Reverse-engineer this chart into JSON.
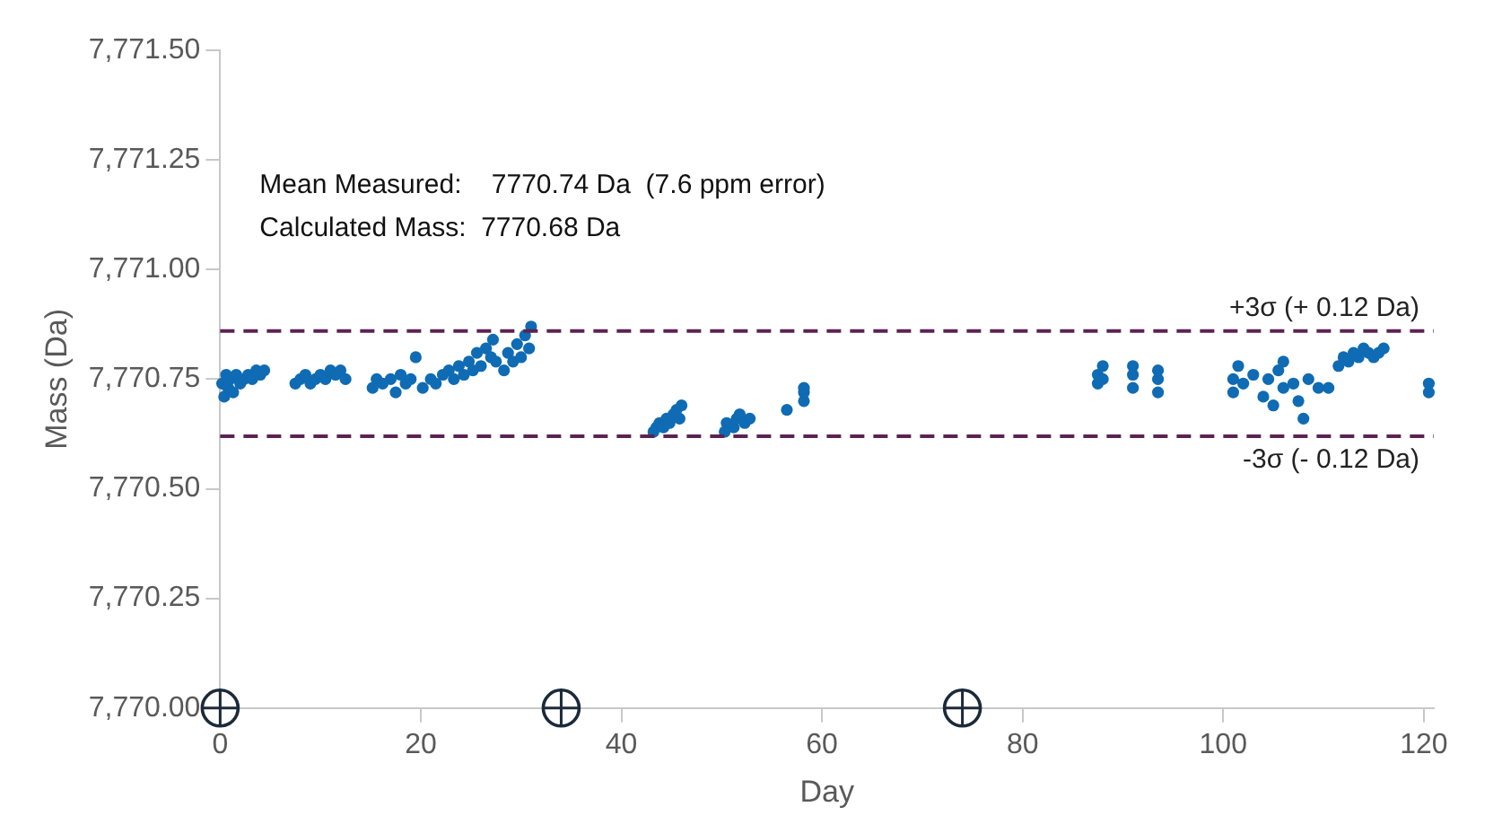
{
  "chart_data": {
    "type": "scatter",
    "xlabel": "Day",
    "ylabel": "Mass (Da)",
    "xlim": [
      0,
      121
    ],
    "xticks": [
      0,
      20,
      40,
      60,
      80,
      100,
      120
    ],
    "ylim": [
      7770,
      7771.5
    ],
    "yticks": [
      {
        "value": 7770,
        "label": "7,770.00"
      },
      {
        "value": 7770.25,
        "label": "7,770.25"
      },
      {
        "value": 7770.5,
        "label": "7,770.50"
      },
      {
        "value": 7770.75,
        "label": "7,770.75"
      },
      {
        "value": 7771,
        "label": "7,771.00"
      },
      {
        "value": 7771.25,
        "label": "7,771.25"
      },
      {
        "value": 7771.5,
        "label": "7,771.50"
      }
    ],
    "grid": false,
    "legend": false,
    "marker": "circle",
    "annotations": [
      "Mean Measured:    7770.74 Da  (7.6 ppm error)",
      "Calculated Mass:  7770.68 Da"
    ],
    "ref_lines": [
      {
        "axis": "y",
        "value": 7770.86,
        "label": "+3σ (+ 0.12 Da)",
        "color": "#5b2352",
        "line_style": "dashed"
      },
      {
        "axis": "y",
        "value": 7770.62,
        "label": "-3σ (- 0.12 Da)",
        "color": "#5b2352",
        "line_style": "dashed"
      }
    ],
    "series": [
      {
        "color": "#0f6bb3",
        "x": [
          0.2,
          0.4,
          0.6,
          0.8,
          1.0,
          1.3,
          1.6,
          2.0,
          2.4,
          2.8,
          3.2,
          3.6,
          4.0,
          4.4,
          7.5,
          8,
          8.5,
          9,
          9.5,
          10,
          10.5,
          11,
          11.5,
          12,
          12.5,
          15.2,
          15.6,
          16.2,
          17,
          17.5,
          18,
          18.5,
          19,
          19.5,
          20.2,
          21,
          21.5,
          22.2,
          22.8,
          23.3,
          23.8,
          24.3,
          24.8,
          25.2,
          25.6,
          26,
          26.5,
          27,
          27.2,
          27.5,
          28.3,
          28.7,
          29.2,
          29.6,
          30,
          30.4,
          30.8,
          31,
          43.2,
          43.5,
          43.8,
          44.2,
          44.5,
          44.8,
          45.2,
          45.5,
          45.8,
          46,
          50.3,
          50.5,
          51.2,
          51.5,
          51.8,
          52.3,
          52.8,
          56.5,
          58.2,
          58.2,
          58.2,
          87.5,
          87.5,
          88,
          88,
          91,
          91,
          91,
          93.5,
          93.5,
          93.5,
          101,
          101,
          101.5,
          102,
          103,
          104,
          104.5,
          105,
          105.5,
          106,
          106,
          107,
          107.5,
          108,
          108.5,
          109.5,
          110.5,
          111.5,
          112,
          112.5,
          113,
          113.5,
          114,
          114.5,
          115,
          115.5,
          116,
          120.5,
          120.5
        ],
        "values": [
          7770.74,
          7770.71,
          7770.76,
          7770.73,
          7770.75,
          7770.72,
          7770.76,
          7770.74,
          7770.75,
          7770.76,
          7770.75,
          7770.77,
          7770.76,
          7770.77,
          7770.74,
          7770.75,
          7770.76,
          7770.74,
          7770.75,
          7770.76,
          7770.75,
          7770.77,
          7770.76,
          7770.77,
          7770.75,
          7770.73,
          7770.75,
          7770.74,
          7770.75,
          7770.72,
          7770.76,
          7770.74,
          7770.75,
          7770.8,
          7770.73,
          7770.75,
          7770.74,
          7770.76,
          7770.77,
          7770.75,
          7770.78,
          7770.76,
          7770.79,
          7770.77,
          7770.81,
          7770.78,
          7770.82,
          7770.8,
          7770.84,
          7770.79,
          7770.77,
          7770.81,
          7770.79,
          7770.83,
          7770.8,
          7770.85,
          7770.82,
          7770.87,
          7770.63,
          7770.64,
          7770.65,
          7770.64,
          7770.66,
          7770.65,
          7770.67,
          7770.68,
          7770.66,
          7770.69,
          7770.63,
          7770.65,
          7770.64,
          7770.66,
          7770.67,
          7770.65,
          7770.66,
          7770.68,
          7770.7,
          7770.72,
          7770.73,
          7770.74,
          7770.76,
          7770.78,
          7770.75,
          7770.73,
          7770.76,
          7770.78,
          7770.72,
          7770.75,
          7770.77,
          7770.72,
          7770.75,
          7770.78,
          7770.74,
          7770.76,
          7770.71,
          7770.75,
          7770.69,
          7770.77,
          7770.73,
          7770.79,
          7770.74,
          7770.7,
          7770.66,
          7770.75,
          7770.73,
          7770.73,
          7770.78,
          7770.8,
          7770.79,
          7770.81,
          7770.8,
          7770.82,
          7770.81,
          7770.8,
          7770.81,
          7770.82,
          7770.72,
          7770.74
        ]
      },
      {
        "color": "#1b2a3a",
        "marker": "circle",
        "x": [
          0,
          34,
          74
        ],
        "values": [
          7770,
          7770,
          7770
        ]
      }
    ]
  }
}
